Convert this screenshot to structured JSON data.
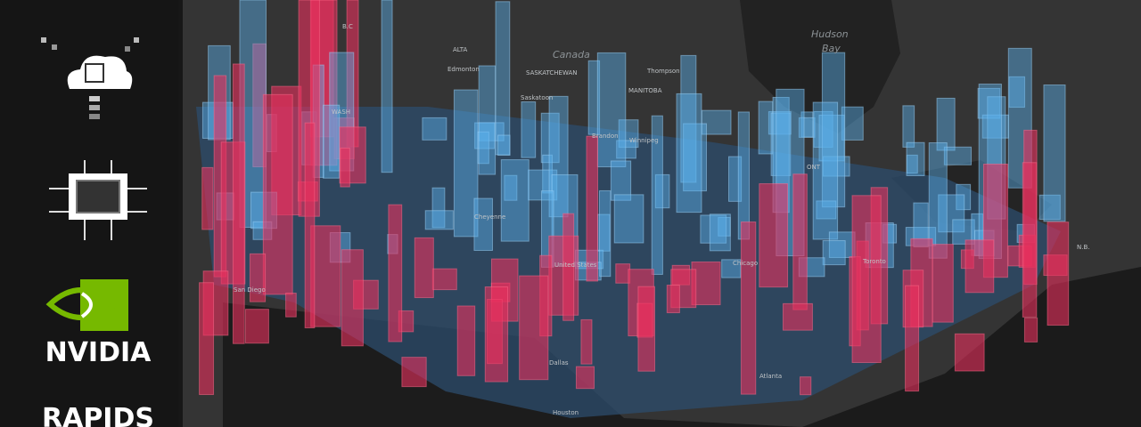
{
  "sidebar": {
    "brand": "NVIDIA",
    "product": "RAPIDS"
  },
  "map": {
    "labels": [
      "Canada",
      "Hudson",
      "Bay",
      "ALTA",
      "Edmonton",
      "SASKATCHEWAN",
      "Saskatoon",
      "MANITOBA",
      "Thompson",
      "Brandon",
      "Winnipeg",
      "ONT",
      "B.C",
      "WASH",
      "Cheyenne",
      "United States",
      "Chicago",
      "Toronto",
      "San Diego",
      "Dallas",
      "Houston",
      "Atlanta",
      "N.B."
    ]
  }
}
